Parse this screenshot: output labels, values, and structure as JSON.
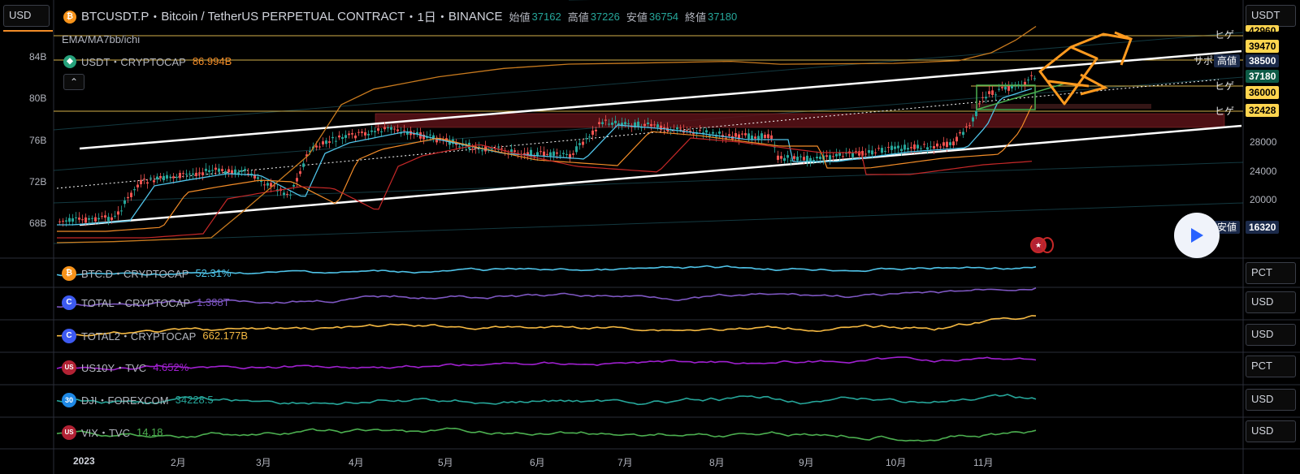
{
  "header": {
    "symbol": "BTCUSDT.P",
    "description": "Bitcoin / TetherUS PERPETUAL CONTRACT",
    "timeframe": "1日",
    "exchange": "BINANCE",
    "sep": "・",
    "open_label": "始値",
    "open": "37162",
    "high_label": "高値",
    "high": "37226",
    "low_label": "安値",
    "low": "36754",
    "close_label": "終値",
    "close": "37180",
    "indicator": "EMA/MA7bb/ichi"
  },
  "currency_left": "USD",
  "currency_right": "USDT",
  "overlay": {
    "name": "USDT・CRYPTOCAP",
    "value": "86.994B",
    "color": "#f28c28"
  },
  "left_axis": [
    "84B",
    "80B",
    "76B",
    "72B",
    "68B"
  ],
  "right_axis": [
    "28000",
    "24000",
    "20000"
  ],
  "price_tags": {
    "top_partial": "42960",
    "p1": "39470",
    "high_label": "高値",
    "high": "38500",
    "current": "37180",
    "p2": "36000",
    "p3": "32428",
    "low_label": "安値",
    "low": "16320"
  },
  "line_labels": {
    "hige1": "ヒゲ",
    "sapo": "サポ",
    "hige2": "ヒゲ",
    "hige3": "ヒゲ"
  },
  "panels": [
    {
      "name": "BTC.D・CRYPTOCAP",
      "value": "52.31%",
      "unit": "PCT",
      "color": "#4fc3e8",
      "badge": "₿",
      "badge_color": "#f7931a"
    },
    {
      "name": "TOTAL・CRYPTOCAP",
      "value": "1.388T",
      "unit": "USD",
      "color": "#7e57c2",
      "badge": "C",
      "badge_color": "#3d5af1"
    },
    {
      "name": "TOTAL2・CRYPTOCAP",
      "value": "662.177B",
      "unit": "USD",
      "color": "#f5b942",
      "badge": "C",
      "badge_color": "#3d5af1"
    },
    {
      "name": "US10Y・TVC",
      "value": "4.652%",
      "unit": "PCT",
      "color": "#a020d0",
      "badge": "US",
      "badge_color": "#b22234"
    },
    {
      "name": "DJI・FOREXCOM",
      "value": "34228.5",
      "unit": "USD",
      "color": "#26a69a",
      "badge": "30",
      "badge_color": "#1e88e5"
    },
    {
      "name": "VIX・TVC",
      "value": "14.18",
      "unit": "USD",
      "color": "#4caf50",
      "badge": "US",
      "badge_color": "#b22234"
    }
  ],
  "x_axis": [
    "2023",
    "2月",
    "3月",
    "4月",
    "5月",
    "6月",
    "7月",
    "8月",
    "9月",
    "10月",
    "11月"
  ],
  "colors": {
    "up": "#26a69a",
    "down": "#ef5350",
    "accent_orange": "#ff9a1f",
    "tag_yellow": "#ffd54f",
    "tag_navy": "#1b2a4a"
  }
}
